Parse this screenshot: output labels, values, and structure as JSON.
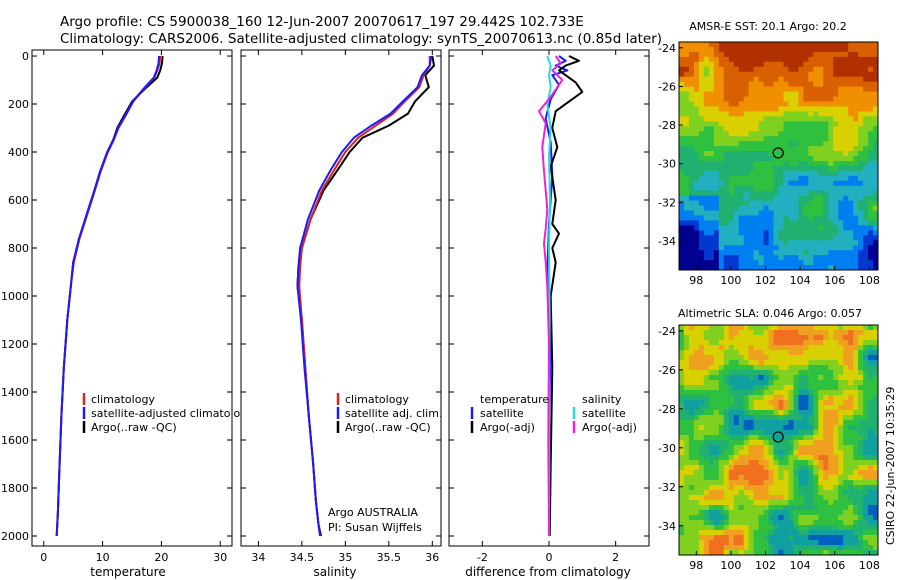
{
  "header": {
    "line1": "Argo profile: CS 5900038_160 12-Jun-2007 20070617_197 29.442S 102.733E",
    "line2": "Climatology: CARS2006. Satellite-adjusted climatology: synTS_20070613.nc (0.85d later)"
  },
  "side_label": "CSIRO 22-Jun-2007 10:35:29",
  "colors": {
    "climatology": "#e0201a",
    "satellite": "#1a1aff",
    "argo": "#000000",
    "diff_satellite": "#22dddd",
    "diff_argo": "#ee22dd"
  },
  "chart_data": [
    {
      "type": "line",
      "id": "temperature",
      "xlabel": "temperature",
      "xlim": [
        -2,
        32
      ],
      "ylim": [
        0,
        2050
      ],
      "y_reversed": true,
      "xticks": [
        0,
        10,
        20,
        30
      ],
      "yticks": [
        0,
        200,
        400,
        600,
        800,
        1000,
        1200,
        1400,
        1600,
        1800,
        2000
      ],
      "series": [
        {
          "name": "Argo(..raw -QC)",
          "color": "#000000",
          "x": [
            20.2,
            20.1,
            19.8,
            19.3,
            17.5,
            15.0,
            13.6,
            12.5,
            11.8,
            10.8,
            9.6,
            8.6,
            7.3,
            6.0,
            5.0,
            4.6,
            4.0,
            3.4,
            3.0,
            2.7,
            2.4,
            2.2
          ],
          "y": [
            0,
            30,
            60,
            90,
            130,
            190,
            250,
            300,
            350,
            400,
            480,
            560,
            660,
            760,
            860,
            960,
            1100,
            1300,
            1500,
            1700,
            1900,
            2000
          ]
        },
        {
          "name": "climatology",
          "color": "#e0201a",
          "x": [
            19.8,
            19.7,
            19.3,
            18.8,
            17.3,
            15.2,
            13.9,
            12.7,
            11.9,
            10.9,
            9.7,
            8.7,
            7.4,
            6.1,
            5.1,
            4.6,
            4.0,
            3.4,
            3.0,
            2.7,
            2.4,
            2.2
          ],
          "y": [
            0,
            30,
            60,
            90,
            130,
            190,
            250,
            300,
            350,
            400,
            480,
            560,
            660,
            760,
            860,
            960,
            1100,
            1300,
            1500,
            1700,
            1900,
            2000
          ]
        },
        {
          "name": "satellite-adjusted climatology",
          "color": "#1a1aff",
          "x": [
            19.6,
            19.5,
            19.2,
            18.7,
            17.2,
            15.1,
            13.8,
            12.6,
            11.8,
            10.8,
            9.6,
            8.6,
            7.3,
            6.0,
            5.0,
            4.6,
            4.0,
            3.4,
            3.0,
            2.7,
            2.4,
            2.2
          ],
          "y": [
            0,
            30,
            60,
            90,
            130,
            190,
            250,
            300,
            350,
            400,
            480,
            560,
            660,
            760,
            860,
            960,
            1100,
            1300,
            1500,
            1700,
            1900,
            2000
          ]
        }
      ],
      "legend": [
        "climatology",
        "satellite-adjusted climatology",
        "Argo(..raw -QC)"
      ]
    },
    {
      "type": "line",
      "id": "salinity",
      "xlabel": "salinity",
      "xlim": [
        33.8,
        36.1
      ],
      "ylim": [
        0,
        2050
      ],
      "y_reversed": true,
      "xticks": [
        34,
        34.5,
        35,
        35.5,
        36
      ],
      "yticks": [
        0,
        200,
        400,
        600,
        800,
        1000,
        1200,
        1400,
        1600,
        1800,
        2000
      ],
      "series": [
        {
          "name": "Argo(..raw -QC)",
          "color": "#000000",
          "x": [
            36.0,
            36.02,
            35.92,
            35.96,
            35.8,
            35.72,
            35.5,
            35.2,
            35.05,
            34.92,
            34.75,
            34.6,
            34.5,
            34.46,
            34.45,
            34.5,
            34.54,
            34.58,
            34.63,
            34.66,
            34.69,
            34.72
          ],
          "y": [
            0,
            40,
            80,
            130,
            190,
            240,
            290,
            340,
            400,
            470,
            560,
            680,
            800,
            880,
            960,
            1100,
            1300,
            1500,
            1700,
            1850,
            1950,
            2000
          ]
        },
        {
          "name": "climatology",
          "color": "#e0201a",
          "x": [
            35.97,
            35.97,
            35.9,
            35.85,
            35.68,
            35.55,
            35.35,
            35.15,
            35.0,
            34.88,
            34.73,
            34.6,
            34.5,
            34.48,
            34.47,
            34.5,
            34.54,
            34.58,
            34.63,
            34.66,
            34.69,
            34.71
          ],
          "y": [
            0,
            40,
            80,
            130,
            190,
            240,
            290,
            340,
            400,
            470,
            560,
            680,
            800,
            880,
            960,
            1100,
            1300,
            1500,
            1700,
            1850,
            1950,
            2000
          ]
        },
        {
          "name": "satellite adj. clim.",
          "color": "#1a1aff",
          "x": [
            35.99,
            35.97,
            35.88,
            35.83,
            35.66,
            35.52,
            35.3,
            35.1,
            34.96,
            34.84,
            34.7,
            34.57,
            34.48,
            34.46,
            34.45,
            34.49,
            34.53,
            34.58,
            34.63,
            34.66,
            34.69,
            34.71
          ],
          "y": [
            0,
            40,
            80,
            130,
            190,
            240,
            290,
            340,
            400,
            470,
            560,
            680,
            800,
            880,
            960,
            1100,
            1300,
            1500,
            1700,
            1850,
            1950,
            2000
          ]
        }
      ],
      "legend": [
        "climatology",
        "satellite adj. clim.",
        "Argo(..raw -QC)"
      ],
      "annotation": [
        "Argo AUSTRALIA",
        "PI: Susan Wijffels"
      ]
    },
    {
      "type": "line",
      "id": "difference",
      "xlabel": "difference from climatology",
      "xlim": [
        -3,
        3
      ],
      "ylim": [
        0,
        2050
      ],
      "y_reversed": true,
      "xticks": [
        -2,
        0,
        2
      ],
      "yticks": [
        0,
        200,
        400,
        600,
        800,
        1000,
        1200,
        1400,
        1600,
        1800,
        2000
      ],
      "series": [
        {
          "name": "temperature satellite",
          "color": "#1a1aff",
          "x": [
            0.3,
            0.5,
            0.2,
            0.55,
            0.1,
            0.3,
            0.05,
            -0.1,
            0.05,
            0.1,
            0.0,
            -0.05,
            0.05,
            0.0,
            0.02,
            0.0
          ],
          "y": [
            0,
            20,
            40,
            60,
            80,
            120,
            180,
            260,
            360,
            500,
            700,
            900,
            1200,
            1500,
            1800,
            2000
          ]
        },
        {
          "name": "temperature Argo(-adj)",
          "color": "#000000",
          "x": [
            0.6,
            0.9,
            0.5,
            0.3,
            0.8,
            1.0,
            0.6,
            0.2,
            0.1,
            0.25,
            0.05,
            0.2,
            0.1,
            0.3,
            0.1,
            0.2,
            0.05,
            0.1,
            0.05,
            0.02
          ],
          "y": [
            0,
            20,
            40,
            60,
            110,
            150,
            190,
            230,
            300,
            380,
            460,
            600,
            700,
            740,
            800,
            860,
            1000,
            1300,
            1700,
            2000
          ]
        },
        {
          "name": "salinity satellite",
          "color": "#22dddd",
          "x": [
            -0.05,
            0.05,
            0.0,
            0.05,
            -0.05,
            0.05,
            0.0,
            0.03,
            0.0,
            0.02,
            0.0,
            0.01,
            0.0
          ],
          "y": [
            0,
            40,
            80,
            130,
            200,
            300,
            420,
            600,
            800,
            1100,
            1400,
            1700,
            2000
          ]
        },
        {
          "name": "salinity Argo(-adj)",
          "color": "#ee22dd",
          "x": [
            0.2,
            0.35,
            0.1,
            0.4,
            0.2,
            0.0,
            -0.3,
            -0.1,
            -0.2,
            -0.15,
            -0.1,
            -0.05,
            -0.1,
            -0.15,
            -0.1,
            -0.05,
            0.0,
            -0.02,
            0.0
          ],
          "y": [
            0,
            30,
            60,
            100,
            140,
            180,
            230,
            280,
            380,
            480,
            560,
            640,
            720,
            780,
            860,
            960,
            1200,
            1600,
            2000
          ]
        }
      ],
      "legend": {
        "col1_title": "temperature",
        "col2_title": "salinity",
        "col1": [
          "satellite",
          "Argo(-adj)"
        ],
        "col2": [
          "satellite",
          "Argo(-adj)"
        ]
      }
    },
    {
      "type": "heatmap",
      "id": "sst",
      "title": "AMSR-E SST: 20.1  Argo: 20.2",
      "xlim": [
        97,
        108.5
      ],
      "ylim": [
        -35.5,
        -23.7
      ],
      "xticks": [
        98,
        100,
        102,
        104,
        106,
        108
      ],
      "yticks": [
        -24,
        -26,
        -28,
        -30,
        -32,
        -34
      ],
      "marker": {
        "lon": 102.733,
        "lat": -29.442
      },
      "palette": [
        "#000090",
        "#0038d0",
        "#0080f0",
        "#22b0c0",
        "#20b070",
        "#30c040",
        "#80d020",
        "#d8d000",
        "#f09000",
        "#d86000",
        "#b03000"
      ]
    },
    {
      "type": "heatmap",
      "id": "sla",
      "title": "Altimetric SLA: 0.046  Argo: 0.057",
      "xlim": [
        97,
        108.5
      ],
      "ylim": [
        -35.5,
        -23.7
      ],
      "xticks": [
        98,
        100,
        102,
        104,
        106,
        108
      ],
      "yticks": [
        -24,
        -26,
        -28,
        -30,
        -32,
        -34
      ],
      "marker": {
        "lon": 102.733,
        "lat": -29.442
      },
      "palette": [
        "#0060c0",
        "#10a0a0",
        "#20b070",
        "#30c040",
        "#80d020",
        "#d8d000",
        "#f0a020",
        "#f07020"
      ]
    }
  ]
}
